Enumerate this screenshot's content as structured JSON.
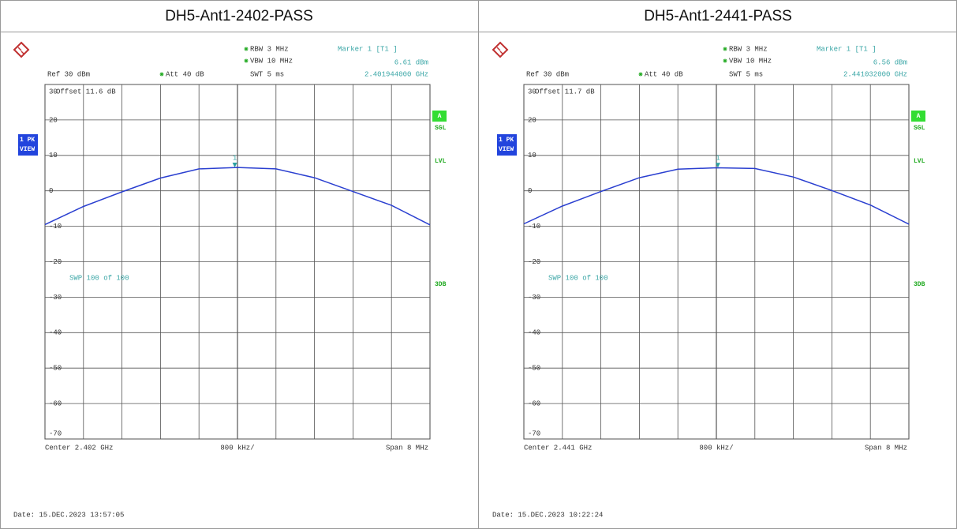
{
  "chart_data": [
    {
      "type": "line",
      "title": "DH5-Ant1-2402-PASS",
      "x": [
        2.398,
        2.3988,
        2.3996,
        2.4004,
        2.4012,
        2.402,
        2.4028,
        2.4036,
        2.4044,
        2.4052,
        2.406
      ],
      "values": [
        -9.5,
        -4.4,
        -0.3,
        3.6,
        6.2,
        6.6,
        6.2,
        3.7,
        -0.2,
        -4.1,
        -9.6
      ],
      "color": "#2a3fd0",
      "xlim": [
        2.398,
        2.406
      ],
      "ylim": [
        -70,
        30
      ],
      "yticks": [
        30,
        20,
        10,
        0,
        -10,
        -20,
        -30,
        -40,
        -50,
        -60,
        -70
      ],
      "grid": true,
      "marker": {
        "label": "Marker 1 [T1 ]",
        "number": "1",
        "x": 2.401944,
        "x_label": "2.401944000 GHz",
        "value": 6.61,
        "value_label": "6.61 dBm"
      },
      "rbw": "RBW 3 MHz",
      "vbw": "VBW 10 MHz",
      "ref": "Ref 30 dBm",
      "att": "Att 40 dB",
      "swt": "SWT 5 ms",
      "offset": "Offset 11.6 dB",
      "trace": [
        "1 PK",
        "VIEW"
      ],
      "side": [
        "A",
        "SGL",
        "LVL",
        "3DB"
      ],
      "swp": "SWP 100 of 100",
      "center": "Center 2.402 GHz",
      "per_div": "800 kHz/",
      "span": "Span 8 MHz",
      "date": "Date: 15.DEC.2023 13:57:05"
    },
    {
      "type": "line",
      "title": "DH5-Ant1-2441-PASS",
      "x": [
        2.437,
        2.4378,
        2.4386,
        2.4394,
        2.4402,
        2.441,
        2.4418,
        2.4426,
        2.4434,
        2.4442,
        2.445
      ],
      "values": [
        -9.3,
        -4.3,
        -0.2,
        3.7,
        6.1,
        6.5,
        6.3,
        3.9,
        0.1,
        -4.0,
        -9.4
      ],
      "color": "#2a3fd0",
      "xlim": [
        2.437,
        2.445
      ],
      "ylim": [
        -70,
        30
      ],
      "yticks": [
        30,
        20,
        10,
        0,
        -10,
        -20,
        -30,
        -40,
        -50,
        -60,
        -70
      ],
      "grid": true,
      "marker": {
        "label": "Marker 1 [T1 ]",
        "number": "1",
        "x": 2.441032,
        "x_label": "2.441032000 GHz",
        "value": 6.56,
        "value_label": "6.56 dBm"
      },
      "rbw": "RBW 3 MHz",
      "vbw": "VBW 10 MHz",
      "ref": "Ref 30 dBm",
      "att": "Att 40 dB",
      "swt": "SWT 5 ms",
      "offset": "Offset 11.7 dB",
      "trace": [
        "1 PK",
        "VIEW"
      ],
      "side": [
        "A",
        "SGL",
        "LVL",
        "3DB"
      ],
      "swp": "SWP 100 of 100",
      "center": "Center 2.441 GHz",
      "per_div": "800 kHz/",
      "span": "Span 8 MHz",
      "date": "Date: 15.DEC.2023 10:22:24"
    }
  ]
}
